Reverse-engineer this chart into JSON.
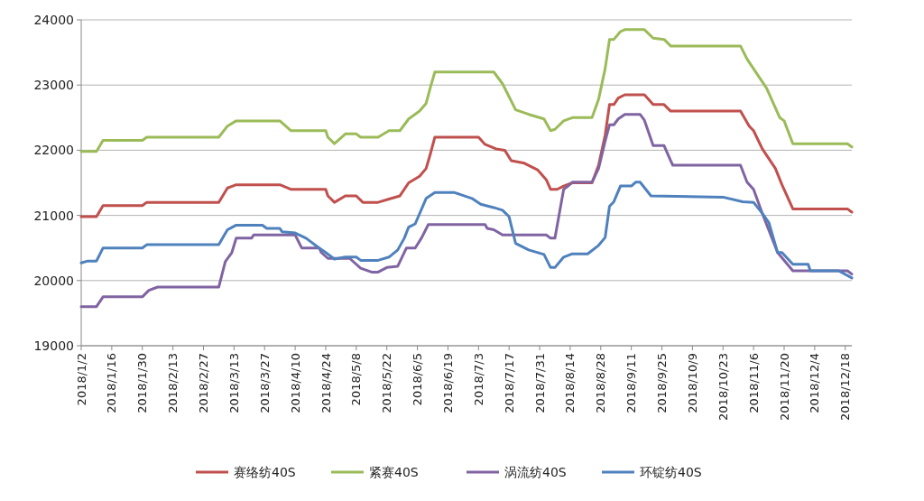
{
  "chart_data": {
    "type": "line",
    "xlim": [
      "2018-01-02",
      "2018-12-21"
    ],
    "xticks": [
      {
        "value": "2018-01-02",
        "label": "2018/1/2"
      },
      {
        "value": "2018-01-16",
        "label": "2018/1/16"
      },
      {
        "value": "2018-01-30",
        "label": "2018/1/30"
      },
      {
        "value": "2018-02-13",
        "label": "2018/2/13"
      },
      {
        "value": "2018-02-27",
        "label": "2018/2/27"
      },
      {
        "value": "2018-03-13",
        "label": "2018/3/13"
      },
      {
        "value": "2018-03-27",
        "label": "2018/3/27"
      },
      {
        "value": "2018-04-10",
        "label": "2018/4/10"
      },
      {
        "value": "2018-04-24",
        "label": "2018/4/24"
      },
      {
        "value": "2018-05-08",
        "label": "2018/5/8"
      },
      {
        "value": "2018-05-22",
        "label": "2018/5/22"
      },
      {
        "value": "2018-06-05",
        "label": "2018/6/5"
      },
      {
        "value": "2018-06-19",
        "label": "2018/6/19"
      },
      {
        "value": "2018-07-03",
        "label": "2018/7/3"
      },
      {
        "value": "2018-07-17",
        "label": "2018/7/17"
      },
      {
        "value": "2018-07-31",
        "label": "2018/7/31"
      },
      {
        "value": "2018-08-14",
        "label": "2018/8/14"
      },
      {
        "value": "2018-08-28",
        "label": "2018/8/28"
      },
      {
        "value": "2018-09-11",
        "label": "2018/9/11"
      },
      {
        "value": "2018-09-25",
        "label": "2018/9/25"
      },
      {
        "value": "2018-10-09",
        "label": "2018/10/9"
      },
      {
        "value": "2018-10-23",
        "label": "2018/10/23"
      },
      {
        "value": "2018-11-06",
        "label": "2018/11/6"
      },
      {
        "value": "2018-11-20",
        "label": "2018/11/20"
      },
      {
        "value": "2018-12-04",
        "label": "2018/12/4"
      },
      {
        "value": "2018-12-18",
        "label": "2018/12/18"
      }
    ],
    "ylim": [
      19000,
      24000
    ],
    "yticks": [
      19000,
      20000,
      21000,
      22000,
      23000,
      24000
    ],
    "grid": "y",
    "legend": "bottom",
    "marker": "none",
    "series": [
      {
        "name": "赛络纺40S",
        "color": "#c0504d",
        "x": [
          "2018-01-02",
          "2018-01-09",
          "2018-01-12",
          "2018-01-30",
          "2018-02-01",
          "2018-03-06",
          "2018-03-10",
          "2018-03-14",
          "2018-04-03",
          "2018-04-08",
          "2018-04-24",
          "2018-04-25",
          "2018-04-28",
          "2018-05-03",
          "2018-05-08",
          "2018-05-11",
          "2018-05-18",
          "2018-05-23",
          "2018-05-28",
          "2018-06-01",
          "2018-06-06",
          "2018-06-09",
          "2018-06-11",
          "2018-06-13",
          "2018-07-03",
          "2018-07-06",
          "2018-07-11",
          "2018-07-15",
          "2018-07-18",
          "2018-07-24",
          "2018-07-30",
          "2018-08-03",
          "2018-08-05",
          "2018-08-08",
          "2018-08-11",
          "2018-08-15",
          "2018-08-24",
          "2018-08-27",
          "2018-08-30",
          "2018-09-01",
          "2018-09-03",
          "2018-09-05",
          "2018-09-08",
          "2018-09-17",
          "2018-09-21",
          "2018-09-26",
          "2018-09-29",
          "2018-10-31",
          "2018-11-04",
          "2018-11-06",
          "2018-11-10",
          "2018-11-16",
          "2018-11-19",
          "2018-11-24",
          "2018-12-19",
          "2018-12-21"
        ],
        "values": [
          20980,
          20980,
          21150,
          21150,
          21200,
          21200,
          21420,
          21470,
          21470,
          21400,
          21400,
          21300,
          21200,
          21300,
          21300,
          21200,
          21200,
          21250,
          21300,
          21500,
          21600,
          21720,
          21950,
          22200,
          22200,
          22090,
          22020,
          22000,
          21840,
          21800,
          21700,
          21550,
          21400,
          21400,
          21450,
          21500,
          21500,
          21770,
          22230,
          22700,
          22700,
          22800,
          22850,
          22850,
          22700,
          22700,
          22600,
          22600,
          22370,
          22300,
          22020,
          21720,
          21470,
          21100,
          21100,
          21050
        ]
      },
      {
        "name": "紧赛40S",
        "color": "#9bbb59",
        "x": [
          "2018-01-02",
          "2018-01-09",
          "2018-01-12",
          "2018-01-30",
          "2018-02-01",
          "2018-03-06",
          "2018-03-10",
          "2018-03-14",
          "2018-04-03",
          "2018-04-08",
          "2018-04-24",
          "2018-04-25",
          "2018-04-28",
          "2018-05-03",
          "2018-05-08",
          "2018-05-10",
          "2018-05-18",
          "2018-05-23",
          "2018-05-28",
          "2018-06-01",
          "2018-06-06",
          "2018-06-09",
          "2018-06-11",
          "2018-06-13",
          "2018-07-10",
          "2018-07-14",
          "2018-07-20",
          "2018-07-26",
          "2018-08-02",
          "2018-08-05",
          "2018-08-07",
          "2018-08-11",
          "2018-08-15",
          "2018-08-24",
          "2018-08-27",
          "2018-08-30",
          "2018-09-01",
          "2018-09-03",
          "2018-09-06",
          "2018-09-08",
          "2018-09-17",
          "2018-09-21",
          "2018-09-26",
          "2018-09-29",
          "2018-10-31",
          "2018-11-03",
          "2018-11-05",
          "2018-11-12",
          "2018-11-18",
          "2018-11-20",
          "2018-11-24",
          "2018-12-19",
          "2018-12-21"
        ],
        "values": [
          21980,
          21980,
          22150,
          22150,
          22200,
          22200,
          22370,
          22450,
          22450,
          22300,
          22300,
          22200,
          22100,
          22250,
          22250,
          22200,
          22200,
          22300,
          22300,
          22480,
          22600,
          22720,
          22970,
          23200,
          23200,
          23020,
          22620,
          22550,
          22480,
          22300,
          22320,
          22450,
          22500,
          22500,
          22780,
          23250,
          23700,
          23700,
          23820,
          23850,
          23850,
          23720,
          23700,
          23600,
          23600,
          23400,
          23300,
          22950,
          22500,
          22450,
          22100,
          22100,
          22050
        ]
      },
      {
        "name": "涡流纺40S",
        "color": "#8064a2",
        "x": [
          "2018-01-02",
          "2018-01-09",
          "2018-01-12",
          "2018-01-30",
          "2018-02-02",
          "2018-02-06",
          "2018-03-06",
          "2018-03-09",
          "2018-03-12",
          "2018-03-14",
          "2018-03-21",
          "2018-03-22",
          "2018-04-10",
          "2018-04-13",
          "2018-04-21",
          "2018-04-22",
          "2018-04-25",
          "2018-05-05",
          "2018-05-10",
          "2018-05-15",
          "2018-05-18",
          "2018-05-22",
          "2018-05-27",
          "2018-05-31",
          "2018-06-04",
          "2018-06-07",
          "2018-06-10",
          "2018-07-06",
          "2018-07-07",
          "2018-07-10",
          "2018-07-14",
          "2018-08-03",
          "2018-08-05",
          "2018-08-07",
          "2018-08-11",
          "2018-08-13",
          "2018-08-15",
          "2018-08-24",
          "2018-08-27",
          "2018-08-30",
          "2018-09-01",
          "2018-09-03",
          "2018-09-05",
          "2018-09-08",
          "2018-09-15",
          "2018-09-17",
          "2018-09-21",
          "2018-09-26",
          "2018-09-29",
          "2018-09-30",
          "2018-10-31",
          "2018-11-03",
          "2018-11-06",
          "2018-11-10",
          "2018-11-17",
          "2018-11-24",
          "2018-12-19",
          "2018-12-21"
        ],
        "values": [
          19600,
          19600,
          19750,
          19750,
          19850,
          19900,
          19900,
          20290,
          20430,
          20650,
          20650,
          20700,
          20700,
          20500,
          20500,
          20430,
          20340,
          20340,
          20190,
          20130,
          20130,
          20200,
          20220,
          20500,
          20500,
          20660,
          20860,
          20860,
          20800,
          20780,
          20700,
          20700,
          20650,
          20650,
          21400,
          21450,
          21510,
          21510,
          21720,
          22140,
          22390,
          22390,
          22480,
          22550,
          22550,
          22460,
          22070,
          22070,
          21840,
          21770,
          21770,
          21510,
          21400,
          21030,
          20430,
          20150,
          20150,
          20100
        ]
      },
      {
        "name": "环锭纺40S",
        "color": "#4f81bd",
        "x": [
          "2018-01-02",
          "2018-01-05",
          "2018-01-09",
          "2018-01-12",
          "2018-01-30",
          "2018-02-01",
          "2018-03-06",
          "2018-03-10",
          "2018-03-14",
          "2018-03-26",
          "2018-03-28",
          "2018-04-03",
          "2018-04-04",
          "2018-04-10",
          "2018-04-15",
          "2018-04-21",
          "2018-04-24",
          "2018-04-28",
          "2018-05-03",
          "2018-05-08",
          "2018-05-10",
          "2018-05-18",
          "2018-05-23",
          "2018-05-27",
          "2018-05-30",
          "2018-06-01",
          "2018-06-04",
          "2018-06-09",
          "2018-06-13",
          "2018-06-22",
          "2018-06-30",
          "2018-07-04",
          "2018-07-10",
          "2018-07-14",
          "2018-07-17",
          "2018-07-20",
          "2018-07-26",
          "2018-08-02",
          "2018-08-05",
          "2018-08-07",
          "2018-08-11",
          "2018-08-15",
          "2018-08-22",
          "2018-08-27",
          "2018-08-30",
          "2018-09-01",
          "2018-09-03",
          "2018-09-06",
          "2018-09-11",
          "2018-09-13",
          "2018-09-15",
          "2018-09-20",
          "2018-10-23",
          "2018-11-01",
          "2018-11-06",
          "2018-11-10",
          "2018-11-13",
          "2018-11-17",
          "2018-11-19",
          "2018-11-24",
          "2018-12-01",
          "2018-12-02",
          "2018-12-15",
          "2018-12-21"
        ],
        "values": [
          20270,
          20300,
          20300,
          20500,
          20500,
          20550,
          20550,
          20780,
          20850,
          20850,
          20800,
          20800,
          20750,
          20730,
          20650,
          20500,
          20430,
          20330,
          20360,
          20360,
          20310,
          20310,
          20360,
          20470,
          20650,
          20820,
          20870,
          21260,
          21350,
          21350,
          21260,
          21170,
          21120,
          21080,
          20980,
          20570,
          20470,
          20400,
          20200,
          20200,
          20360,
          20410,
          20410,
          20540,
          20660,
          21140,
          21210,
          21450,
          21450,
          21510,
          21510,
          21300,
          21280,
          21210,
          21200,
          21030,
          20890,
          20430,
          20430,
          20250,
          20250,
          20150,
          20150,
          20040
        ]
      }
    ]
  }
}
